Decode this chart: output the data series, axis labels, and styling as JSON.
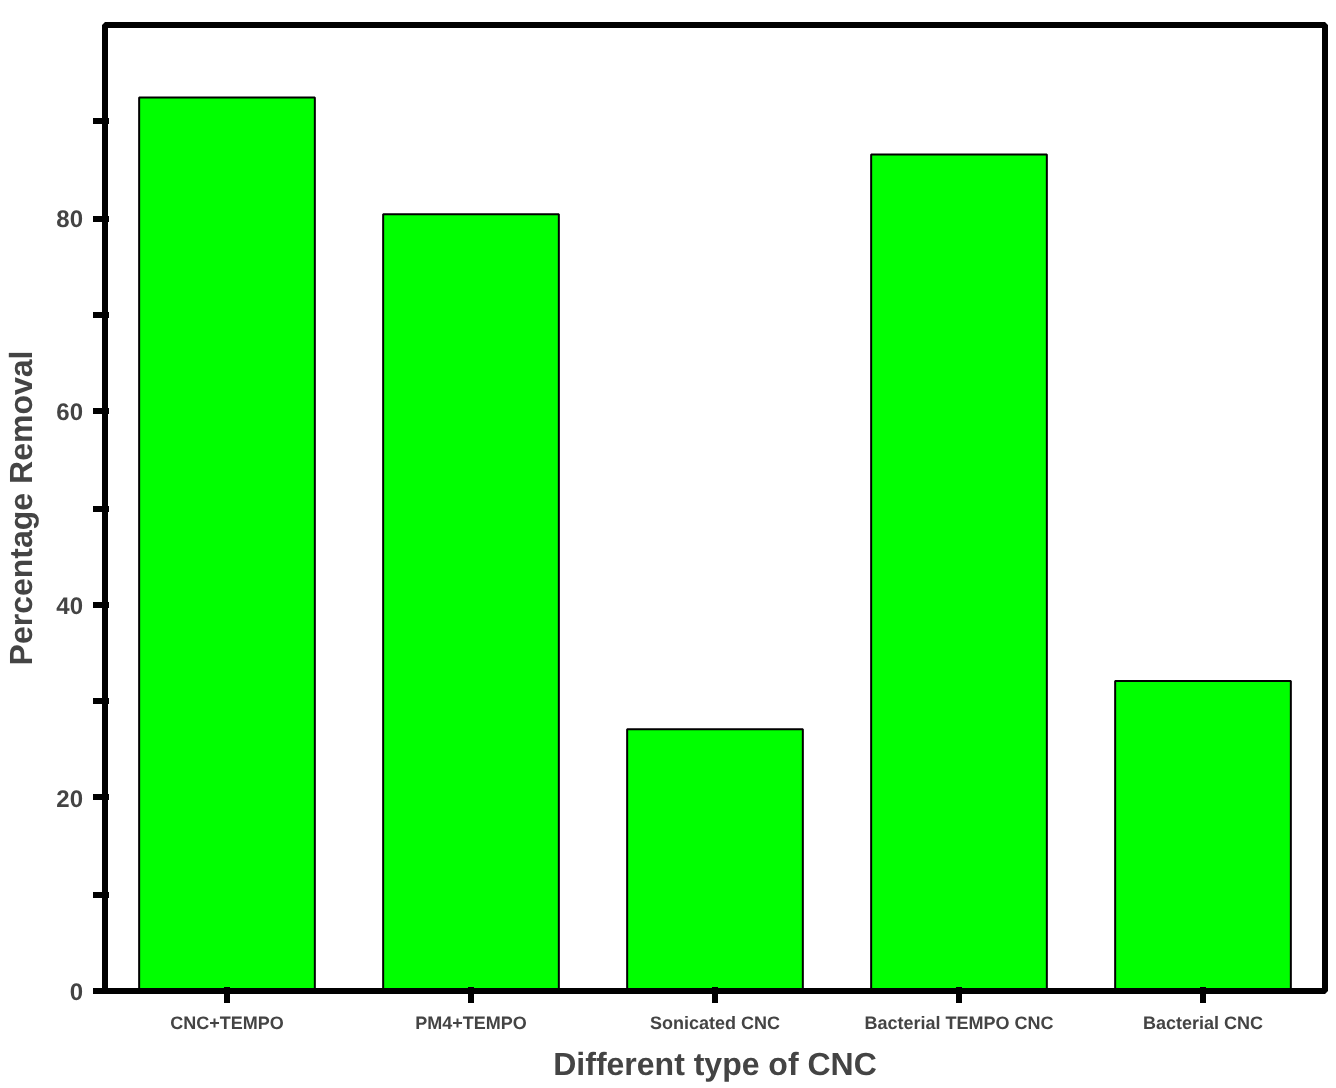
{
  "chart_data": {
    "type": "bar",
    "xlabel": "Different type of CNC",
    "ylabel": "Percentage Removal",
    "categories": [
      "CNC+TEMPO",
      "PM4+TEMPO",
      "Sonicated CNC",
      "Bacterial TEMPO CNC",
      "Bacterial CNC"
    ],
    "values": [
      92.5,
      80.4,
      27.1,
      86.6,
      32.1
    ],
    "color": "#00ff00",
    "ylim": [
      0,
      100
    ],
    "yticks": [
      0,
      {
        "value": 10,
        "label": null
      },
      20,
      {
        "value": 30,
        "label": null
      },
      40,
      {
        "value": 50,
        "label": null
      },
      60,
      {
        "value": 70,
        "label": null
      },
      80,
      {
        "value": 90,
        "label": null
      }
    ],
    "grid": false
  }
}
